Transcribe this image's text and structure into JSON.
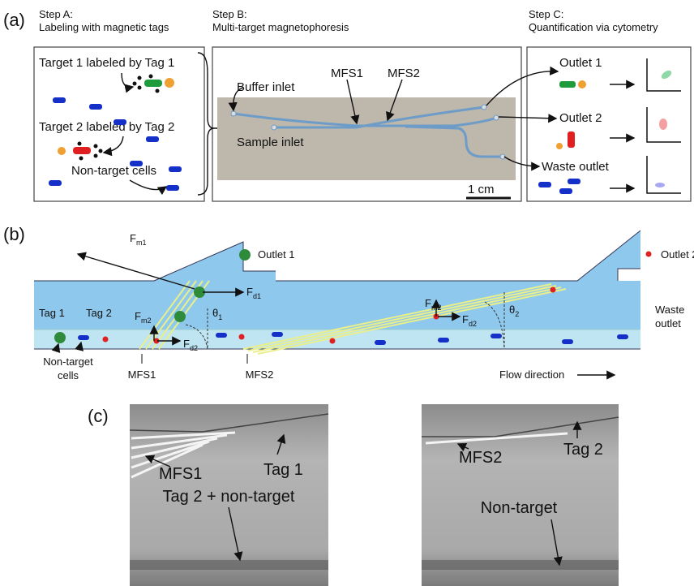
{
  "panel_a": {
    "label": "(a)",
    "step_a": {
      "title": "Step A:",
      "subtitle": "Labeling with magnetic tags",
      "items": [
        "Target 1 labeled by Tag 1",
        "Target 2 labeled by Tag 2",
        "Non-target cells"
      ]
    },
    "step_b": {
      "title": "Step B:",
      "subtitle": "Multi-target magnetophoresis",
      "labels": [
        "Buffer inlet",
        "Sample inlet",
        "MFS1",
        "MFS2"
      ],
      "scale_bar": "1 cm"
    },
    "step_c": {
      "title": "Step C:",
      "subtitle": "Quantification via cytometry",
      "outlets": [
        "Outlet 1",
        "Outlet 2",
        "Waste outlet"
      ]
    }
  },
  "panel_b": {
    "label": "(b)",
    "outlets": [
      "Outlet 1",
      "Outlet 2"
    ],
    "waste_outlet": [
      "Waste",
      "outlet"
    ],
    "tags": [
      "Tag 1",
      "Tag 2"
    ],
    "non_target": [
      "Non-target",
      "cells"
    ],
    "mfs": [
      "MFS1",
      "MFS2"
    ],
    "flow": "Flow direction",
    "forces": [
      {
        "symbol": "F",
        "sub": "m1"
      },
      {
        "symbol": "F",
        "sub": "d1"
      },
      {
        "symbol": "F",
        "sub": "m2"
      },
      {
        "symbol": "F",
        "sub": "d2"
      },
      {
        "symbol": "F",
        "sub": "m2"
      },
      {
        "symbol": "F",
        "sub": "d2"
      }
    ],
    "angles": [
      {
        "symbol": "θ",
        "sub": "1"
      },
      {
        "symbol": "θ",
        "sub": "2"
      }
    ]
  },
  "panel_c": {
    "label": "(c)",
    "left": [
      "MFS1",
      "Tag 1",
      "Tag 2 + non-target"
    ],
    "right": [
      "MFS2",
      "Tag 2",
      "Non-target"
    ]
  }
}
